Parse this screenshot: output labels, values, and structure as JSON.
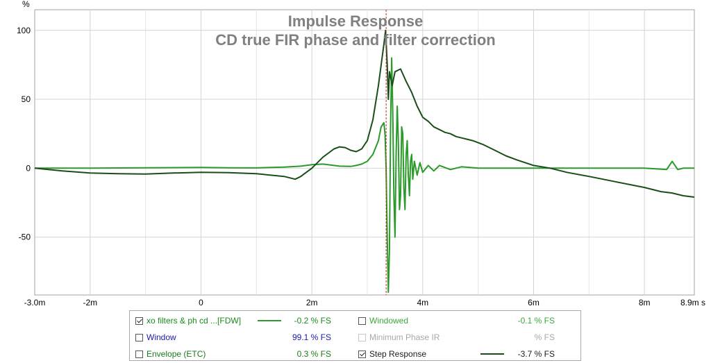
{
  "chart_data": {
    "type": "line",
    "title": "Impulse Response",
    "subtitle": "CD true FIR phase and  filter correction",
    "ylabel": "%",
    "xlim": [
      -0.003,
      0.0089
    ],
    "ylim": [
      -92,
      115
    ],
    "grid": true,
    "x_tick_labels": [
      {
        "x": -0.003,
        "label": "-3.0m"
      },
      {
        "x": -0.002,
        "label": "-2m"
      },
      {
        "x": 0,
        "label": "0"
      },
      {
        "x": 0.002,
        "label": "2m"
      },
      {
        "x": 0.004,
        "label": "4m"
      },
      {
        "x": 0.006,
        "label": "6m"
      },
      {
        "x": 0.008,
        "label": "8m"
      },
      {
        "x": 0.0089,
        "label": "8.9m s"
      }
    ],
    "x_minor_ticks": [
      -0.001,
      0.001,
      0.003,
      0.005,
      0.007
    ],
    "y_tick_labels": [
      {
        "y": 100,
        "label": "100"
      },
      {
        "y": 50,
        "label": "50"
      },
      {
        "y": 0,
        "label": "0"
      },
      {
        "y": -50,
        "label": "-50"
      }
    ],
    "marker_x": 0.00334,
    "series": [
      {
        "name": "xo filters & ph cd ...[FDW]",
        "role": "impulse",
        "color": "#2a9a2a",
        "points": [
          [
            -0.003,
            0
          ],
          [
            -0.002,
            0
          ],
          [
            -0.001,
            0.3
          ],
          [
            0,
            0.5
          ],
          [
            0.0005,
            0.3
          ],
          [
            0.001,
            0.2
          ],
          [
            0.0015,
            0.8
          ],
          [
            0.0018,
            1.5
          ],
          [
            0.002,
            2.6
          ],
          [
            0.0022,
            3
          ],
          [
            0.0025,
            1.5
          ],
          [
            0.0027,
            1.3
          ],
          [
            0.0028,
            2
          ],
          [
            0.0029,
            3
          ],
          [
            0.003,
            5
          ],
          [
            0.0031,
            10
          ],
          [
            0.0032,
            20
          ],
          [
            0.00325,
            30
          ],
          [
            0.0033,
            33
          ],
          [
            0.00332,
            25
          ],
          [
            0.00334,
            0
          ],
          [
            0.00336,
            -50
          ],
          [
            0.00338,
            -90
          ],
          [
            0.0034,
            -60
          ],
          [
            0.00342,
            30
          ],
          [
            0.00344,
            80
          ],
          [
            0.00346,
            40
          ],
          [
            0.00348,
            -20
          ],
          [
            0.0035,
            -50
          ],
          [
            0.00352,
            10
          ],
          [
            0.00354,
            45
          ],
          [
            0.00356,
            20
          ],
          [
            0.00358,
            -30
          ],
          [
            0.0036,
            -20
          ],
          [
            0.00362,
            30
          ],
          [
            0.00364,
            25
          ],
          [
            0.00366,
            -15
          ],
          [
            0.00368,
            -30
          ],
          [
            0.0037,
            10
          ],
          [
            0.00372,
            20
          ],
          [
            0.00374,
            -5
          ],
          [
            0.00376,
            -20
          ],
          [
            0.00378,
            5
          ],
          [
            0.0038,
            10
          ],
          [
            0.00382,
            -8
          ],
          [
            0.00385,
            5
          ],
          [
            0.0039,
            -5
          ],
          [
            0.00395,
            4
          ],
          [
            0.004,
            -3
          ],
          [
            0.0041,
            2
          ],
          [
            0.0042,
            -2
          ],
          [
            0.0043,
            2
          ],
          [
            0.0045,
            -1
          ],
          [
            0.0047,
            1
          ],
          [
            0.005,
            0
          ],
          [
            0.006,
            0
          ],
          [
            0.007,
            0
          ],
          [
            0.008,
            0
          ],
          [
            0.0084,
            -1
          ],
          [
            0.0085,
            5
          ],
          [
            0.0086,
            -1
          ],
          [
            0.0087,
            0
          ],
          [
            0.0089,
            0
          ]
        ]
      },
      {
        "name": "Step Response",
        "role": "step",
        "color": "#1a4d1a",
        "points": [
          [
            -0.003,
            0
          ],
          [
            -0.0025,
            -2
          ],
          [
            -0.002,
            -3.5
          ],
          [
            -0.0015,
            -4
          ],
          [
            -0.001,
            -4.2
          ],
          [
            -0.0005,
            -3.5
          ],
          [
            0,
            -3
          ],
          [
            0.0005,
            -3.2
          ],
          [
            0.001,
            -4
          ],
          [
            0.0015,
            -6
          ],
          [
            0.0017,
            -8
          ],
          [
            0.0018,
            -6
          ],
          [
            0.002,
            0
          ],
          [
            0.0022,
            8
          ],
          [
            0.0024,
            14
          ],
          [
            0.0025,
            15.5
          ],
          [
            0.0026,
            15
          ],
          [
            0.0027,
            13
          ],
          [
            0.0028,
            12
          ],
          [
            0.0029,
            14
          ],
          [
            0.003,
            20
          ],
          [
            0.0031,
            35
          ],
          [
            0.0032,
            60
          ],
          [
            0.0033,
            90
          ],
          [
            0.00333,
            100
          ],
          [
            0.00336,
            75
          ],
          [
            0.00338,
            50
          ],
          [
            0.0034,
            70
          ],
          [
            0.00345,
            60
          ],
          [
            0.0035,
            70
          ],
          [
            0.0036,
            72
          ],
          [
            0.0037,
            63
          ],
          [
            0.0038,
            55
          ],
          [
            0.0039,
            45
          ],
          [
            0.004,
            37
          ],
          [
            0.0041,
            34
          ],
          [
            0.0042,
            30
          ],
          [
            0.0043,
            28
          ],
          [
            0.0044,
            26
          ],
          [
            0.0045,
            25
          ],
          [
            0.0046,
            23
          ],
          [
            0.0047,
            22
          ],
          [
            0.0048,
            21
          ],
          [
            0.0049,
            20
          ],
          [
            0.0051,
            17
          ],
          [
            0.0053,
            13
          ],
          [
            0.0055,
            9
          ],
          [
            0.0057,
            6
          ],
          [
            0.006,
            2
          ],
          [
            0.0063,
            0
          ],
          [
            0.0066,
            -3
          ],
          [
            0.007,
            -6
          ],
          [
            0.0075,
            -10
          ],
          [
            0.008,
            -14
          ],
          [
            0.0083,
            -17
          ],
          [
            0.0085,
            -18
          ],
          [
            0.0087,
            -20
          ],
          [
            0.0089,
            -21
          ]
        ]
      }
    ]
  },
  "legend": {
    "items": [
      {
        "key": "xo",
        "label": "xo filters & ph cd ...[FDW]",
        "checked": true,
        "disabled": false,
        "color": "#1a8a1a",
        "line_color": "#2a9a2a",
        "value": "-0.2 % FS",
        "value_color": "#1a8a1a"
      },
      {
        "key": "window",
        "label": "Window",
        "checked": false,
        "disabled": false,
        "color": "#1a1aa8",
        "line_color": "",
        "value": "99.1 % FS",
        "value_color": "#1a1aa8"
      },
      {
        "key": "envelope",
        "label": "Envelope (ETC)",
        "checked": false,
        "disabled": false,
        "color": "#1a7a1a",
        "line_color": "",
        "value": "0.3 % FS",
        "value_color": "#1a7a1a"
      },
      {
        "key": "windowed",
        "label": "Windowed",
        "checked": false,
        "disabled": false,
        "color": "#3aa83a",
        "line_color": "",
        "value": "-0.1 % FS",
        "value_color": "#3aa83a"
      },
      {
        "key": "minphase",
        "label": "Minimum Phase IR",
        "checked": false,
        "disabled": true,
        "color": "#a8a8a8",
        "line_color": "",
        "value": "% FS",
        "value_color": "#a8a8a8"
      },
      {
        "key": "step",
        "label": "Step Response",
        "checked": true,
        "disabled": false,
        "color": "#1a1a1a",
        "line_color": "#1a4d1a",
        "value": "-3.7 % FS",
        "value_color": "#1a1a1a"
      }
    ]
  }
}
